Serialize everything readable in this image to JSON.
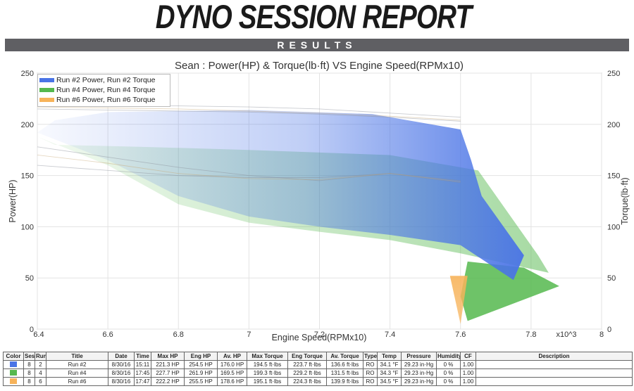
{
  "report": {
    "title": "DYNO SESSION REPORT",
    "section": "RESULTS"
  },
  "chart_data": {
    "type": "line",
    "title": "Sean : Power(HP) & Torque(lb·ft) VS Engine Speed(RPMx10)",
    "xlabel": "Engine Speed(RPMx10)",
    "x_multiplier": "x10^3",
    "ylabel_left": "Power(HP)",
    "ylabel_right": "Torque(lb·ft)",
    "xlim": [
      6.4,
      8.0
    ],
    "ylim": [
      0,
      250
    ],
    "x_ticks": [
      "6.4",
      "6.6",
      "6.8",
      "7",
      "7.2",
      "7.4",
      "7.6",
      "7.8",
      "8"
    ],
    "y_ticks": [
      "0",
      "50",
      "100",
      "150",
      "200",
      "250"
    ],
    "grid": true,
    "legend_position": "top-left",
    "series": [
      {
        "name": "Run #2 Power, Run #2 Torque",
        "color": "#4a74e6",
        "power": {
          "x": [
            6.4,
            6.6,
            6.8,
            7.0,
            7.2,
            7.4,
            7.6
          ],
          "y": [
            178,
            168,
            158,
            150,
            145,
            152,
            143
          ]
        },
        "torque": {
          "x": [
            6.4,
            6.6,
            6.8,
            7.0,
            7.2,
            7.4,
            7.6
          ],
          "y": [
            215,
            214,
            213,
            212,
            210,
            207,
            203
          ]
        }
      },
      {
        "name": "Run #4 Power, Run #4 Torque",
        "color": "#55b84e",
        "power": {
          "x": [
            6.4,
            6.6,
            6.8,
            7.0,
            7.2,
            7.4,
            7.6
          ],
          "y": [
            160,
            155,
            150,
            148,
            148,
            152,
            145
          ]
        },
        "torque": {
          "x": [
            6.4,
            6.6,
            6.8,
            7.0,
            7.2,
            7.4,
            7.6
          ],
          "y": [
            220,
            219,
            218,
            217,
            215,
            211,
            207
          ]
        }
      },
      {
        "name": "Run #6 Power, Run #6 Torque",
        "color": "#f7b35a",
        "power": {
          "x": [
            6.4,
            6.6,
            6.8,
            7.0,
            7.2,
            7.4,
            7.6
          ],
          "y": [
            170,
            162,
            152,
            147,
            146,
            152,
            144
          ]
        },
        "torque": {
          "x": [
            6.4,
            6.6,
            6.8,
            7.0,
            7.2,
            7.4,
            7.6
          ],
          "y": [
            217,
            216,
            215,
            213,
            211,
            208,
            204
          ]
        }
      }
    ]
  },
  "table": {
    "headers": [
      "Color",
      "Ses",
      "Run",
      "Title",
      "Date",
      "Time",
      "Max HP",
      "Eng HP",
      "Av. HP",
      "Max Torque",
      "Eng Torque",
      "Av. Torque",
      "Type",
      "Temp",
      "Pressure",
      "Humidity",
      "CF",
      "Description"
    ],
    "rows": [
      {
        "color": "#4a74e6",
        "cells": [
          "8",
          "2",
          "Run #2",
          "8/30/16",
          "15:11",
          "221.3 HP",
          "254.5 HP",
          "176.0 HP",
          "194.5 ft·lbs",
          "223.7 ft·lbs",
          "136.6 ft·lbs",
          "RO",
          "34.1 °F",
          "29.23 in·Hg",
          "0 %",
          "1.00",
          ""
        ]
      },
      {
        "color": "#55b84e",
        "cells": [
          "8",
          "4",
          "Run #4",
          "8/30/16",
          "17:45",
          "227.7 HP",
          "261.9 HP",
          "169.5 HP",
          "199.3 ft·lbs",
          "229.2 ft·lbs",
          "131.5 ft·lbs",
          "RO",
          "34.3 °F",
          "29.23 in·Hg",
          "0 %",
          "1.00",
          ""
        ]
      },
      {
        "color": "#f7b35a",
        "cells": [
          "8",
          "6",
          "Run #6",
          "8/30/16",
          "17:47",
          "222.2 HP",
          "255.5 HP",
          "178.6 HP",
          "195.1 ft·lbs",
          "224.3 ft·lbs",
          "139.9 ft·lbs",
          "RO",
          "34.5 °F",
          "29.23 in·Hg",
          "0 %",
          "1.00",
          ""
        ]
      }
    ]
  }
}
